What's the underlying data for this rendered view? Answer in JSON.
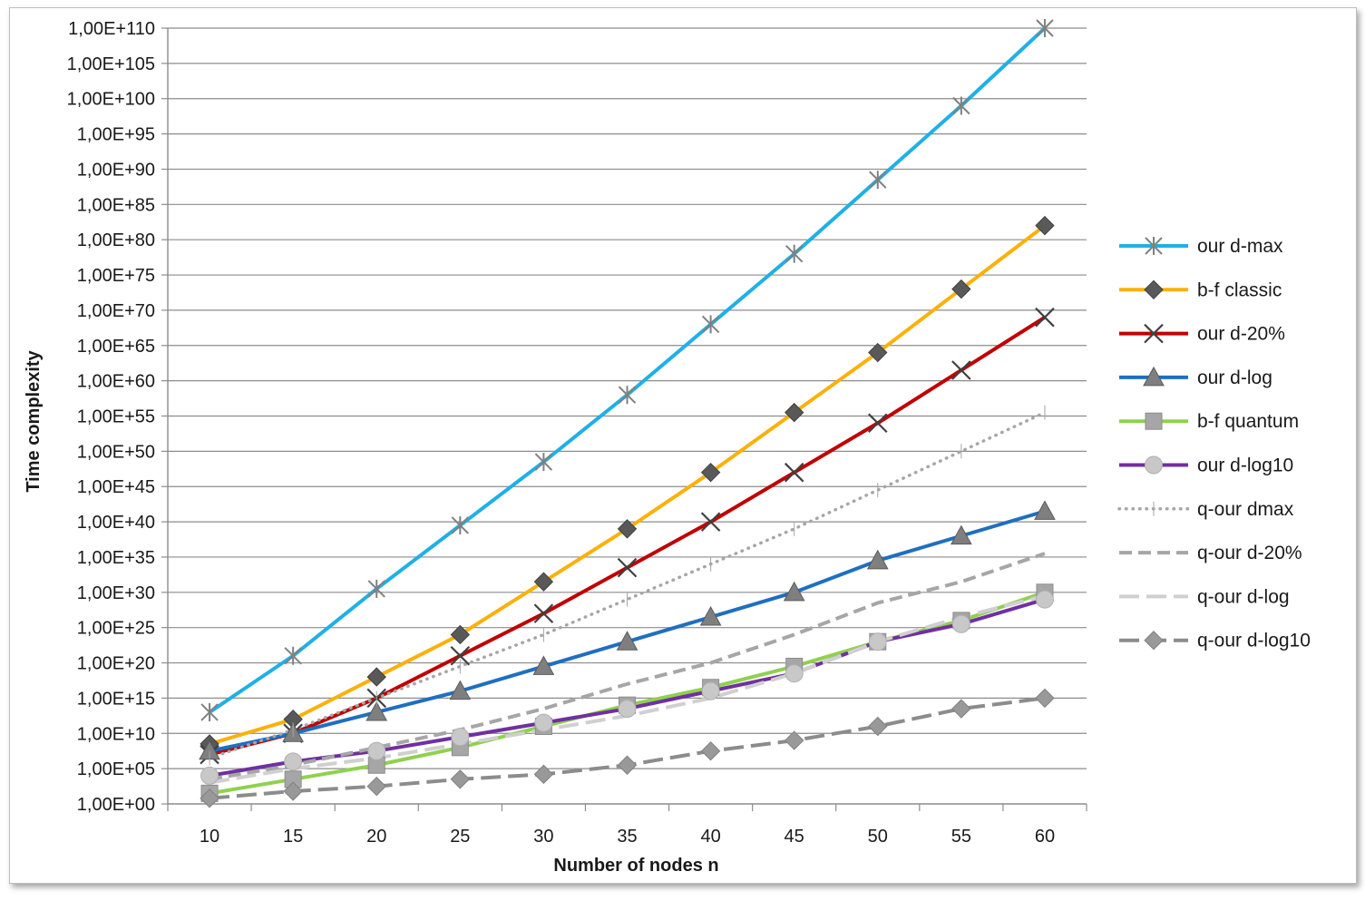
{
  "chart_data": {
    "type": "line",
    "title": "",
    "xlabel": "Number of nodes n",
    "ylabel": "Time complexity",
    "y_scale": "log10",
    "ylim": [
      0,
      110
    ],
    "grid": true,
    "legend_position": "right",
    "x": [
      10,
      15,
      20,
      25,
      30,
      35,
      40,
      45,
      50,
      55,
      60
    ],
    "x_tick_labels": [
      "10",
      "15",
      "20",
      "25",
      "30",
      "35",
      "40",
      "45",
      "50",
      "55",
      "60"
    ],
    "y_tick_labels": [
      "1,00E+00",
      "1,00E+05",
      "1,00E+10",
      "1,00E+15",
      "1,00E+20",
      "1,00E+25",
      "1,00E+30",
      "1,00E+35",
      "1,00E+40",
      "1,00E+45",
      "1,00E+50",
      "1,00E+55",
      "1,00E+60",
      "1,00E+65",
      "1,00E+70",
      "1,00E+75",
      "1,00E+80",
      "1,00E+85",
      "1,00E+90",
      "1,00E+95",
      "1,00E+100",
      "1,00E+105",
      "1,00E+110"
    ],
    "y_tick_exponents": [
      0,
      5,
      10,
      15,
      20,
      25,
      30,
      35,
      40,
      45,
      50,
      55,
      60,
      65,
      70,
      75,
      80,
      85,
      90,
      95,
      100,
      105,
      110
    ],
    "series_note": "values are log10 of time complexity",
    "series": [
      {
        "name": "our d-max",
        "color": "#1fb0e6",
        "dash": "",
        "marker": "star",
        "values": [
          13,
          21,
          30.5,
          39.5,
          48.5,
          58,
          68,
          78,
          88.5,
          99,
          110
        ]
      },
      {
        "name": "b-f classic",
        "color": "#fbb10a",
        "dash": "",
        "marker": "diamond",
        "values": [
          8.5,
          12,
          18,
          24,
          31.5,
          39,
          47,
          55.5,
          64,
          73,
          82
        ]
      },
      {
        "name": "our d-20%",
        "color": "#c00000",
        "dash": "",
        "marker": "x",
        "values": [
          7,
          10,
          15,
          21,
          27,
          33.5,
          40,
          47,
          54,
          61.5,
          69
        ]
      },
      {
        "name": "our d-log",
        "color": "#1f6fc0",
        "dash": "",
        "marker": "triangle",
        "values": [
          7.5,
          10,
          13,
          16,
          19.5,
          23,
          26.5,
          30,
          34.5,
          38,
          41.5
        ]
      },
      {
        "name": "b-f  quantum",
        "color": "#8fd14f",
        "dash": "",
        "marker": "square",
        "values": [
          1.5,
          3.5,
          5.5,
          8,
          11,
          14,
          16.5,
          19.5,
          23,
          26,
          30
        ]
      },
      {
        "name": "our d-log10",
        "color": "#7030a0",
        "dash": "",
        "marker": "circle",
        "values": [
          4,
          6,
          7.5,
          9.5,
          11.5,
          13.5,
          16,
          18.5,
          23,
          25.5,
          29
        ]
      },
      {
        "name": "q-our dmax",
        "color": "#a6a6a6",
        "dash": "2,6",
        "marker": "none",
        "values": [
          6.5,
          10.5,
          15,
          19.5,
          24,
          29,
          34,
          39,
          44.5,
          50,
          55.5
        ]
      },
      {
        "name": "q-our d-20%",
        "color": "#a6a6a6",
        "dash": "14,7",
        "marker": "none",
        "values": [
          3.5,
          5.5,
          8,
          10.5,
          13.5,
          17,
          20,
          24,
          28.5,
          31.5,
          35.5
        ]
      },
      {
        "name": "q-our d-log",
        "color": "#d0d0d0",
        "dash": "22,8",
        "marker": "none",
        "values": [
          3,
          5,
          6.5,
          8.5,
          10.5,
          12.5,
          15,
          18.5,
          23,
          26.5,
          29.5
        ]
      },
      {
        "name": "q-our d-log10",
        "color": "#8c8c8c",
        "dash": "22,8",
        "marker": "diamond-gray",
        "values": [
          0.8,
          1.8,
          2.5,
          3.5,
          4.2,
          5.5,
          7.5,
          9,
          11,
          13.5,
          15
        ]
      }
    ]
  }
}
